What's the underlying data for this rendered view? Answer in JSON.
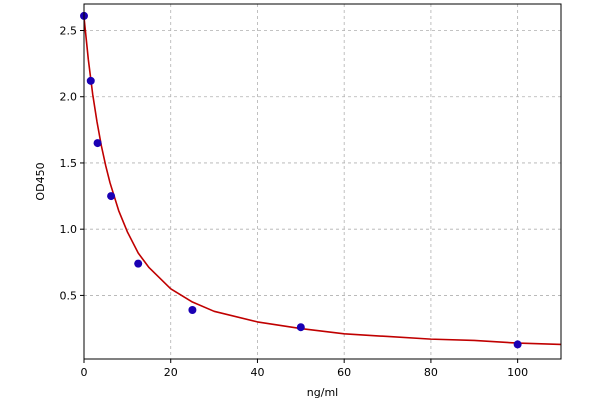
{
  "colors": {
    "figure_background": "#ffffff",
    "plot_background": "#ffffff",
    "grid": "#b0b0b0",
    "axes_frame": "#000000",
    "curve": "#c00000",
    "marker": "#1a00b4"
  },
  "chart_data": {
    "type": "scatter",
    "title": "",
    "xlabel": "ng/ml",
    "ylabel": "OD450",
    "xlim": [
      0,
      110
    ],
    "ylim": [
      0.02,
      2.7
    ],
    "x_ticks": [
      0,
      20,
      40,
      60,
      80,
      100
    ],
    "x_tick_labels": [
      "0",
      "20",
      "40",
      "60",
      "80",
      "100"
    ],
    "y_ticks": [
      0.5,
      1.0,
      1.5,
      2.0,
      2.5
    ],
    "y_tick_labels": [
      "0.5",
      "1.0",
      "1.5",
      "2.0",
      "2.5"
    ],
    "grid": true,
    "grid_style": "dashed",
    "legend": "none",
    "series": [
      {
        "kind": "scatter",
        "x": [
          0,
          1.56,
          3.13,
          6.25,
          12.5,
          25,
          50,
          100
        ],
        "y": [
          2.61,
          2.12,
          1.65,
          1.25,
          0.74,
          0.39,
          0.26,
          0.13
        ]
      },
      {
        "kind": "line",
        "x": [
          0,
          1,
          2,
          3,
          4,
          5,
          6,
          8,
          10,
          12.5,
          15,
          20,
          25,
          30,
          40,
          50,
          60,
          70,
          80,
          90,
          100,
          110
        ],
        "y": [
          2.6,
          2.28,
          2.02,
          1.81,
          1.63,
          1.48,
          1.35,
          1.14,
          0.98,
          0.82,
          0.71,
          0.55,
          0.45,
          0.38,
          0.3,
          0.25,
          0.21,
          0.19,
          0.17,
          0.16,
          0.14,
          0.13
        ]
      }
    ]
  }
}
